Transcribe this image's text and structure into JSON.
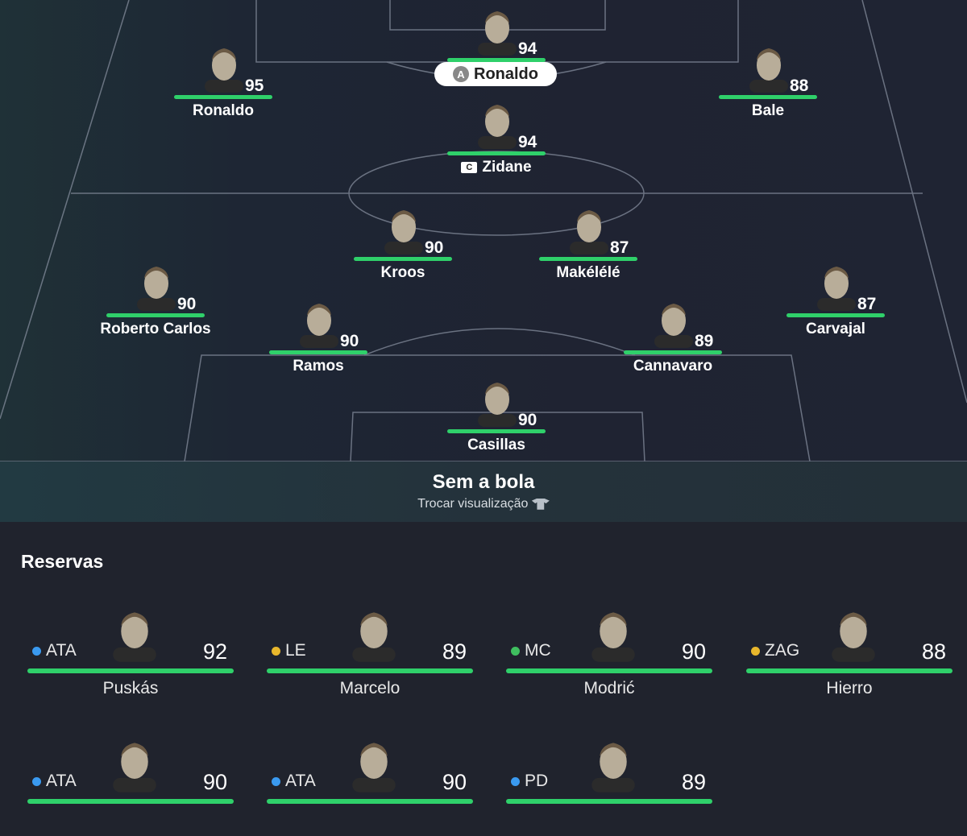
{
  "formation": [
    {
      "name": "Ronaldo",
      "rating": "94",
      "badge": "A",
      "highlight": true
    },
    {
      "name": "Ronaldo",
      "rating": "95"
    },
    {
      "name": "Bale",
      "rating": "88"
    },
    {
      "name": "Zidane",
      "rating": "94",
      "badge": "C"
    },
    {
      "name": "Kroos",
      "rating": "90"
    },
    {
      "name": "Makélélé",
      "rating": "87"
    },
    {
      "name": "Roberto Carlos",
      "rating": "90"
    },
    {
      "name": "Carvajal",
      "rating": "87"
    },
    {
      "name": "Ramos",
      "rating": "90"
    },
    {
      "name": "Cannavaro",
      "rating": "89"
    },
    {
      "name": "Casillas",
      "rating": "90"
    }
  ],
  "banner": {
    "title": "Sem a bola",
    "subtitle": "Trocar visualização",
    "icon": "shirt-swap-icon"
  },
  "reserves": {
    "title": "Reservas",
    "players": [
      {
        "position": "ATA",
        "rating": "92",
        "name": "Puskás",
        "dot_color": "#3a9af0"
      },
      {
        "position": "LE",
        "rating": "89",
        "name": "Marcelo",
        "dot_color": "#e8b72c"
      },
      {
        "position": "MC",
        "rating": "90",
        "name": "Modrić",
        "dot_color": "#3fbf5f"
      },
      {
        "position": "ZAG",
        "rating": "88",
        "name": "Hierro",
        "dot_color": "#e8b72c"
      },
      {
        "position": "ATA",
        "rating": "90",
        "name": "",
        "dot_color": "#3a9af0"
      },
      {
        "position": "ATA",
        "rating": "90",
        "name": "",
        "dot_color": "#3a9af0"
      },
      {
        "position": "PD",
        "rating": "89",
        "name": "",
        "dot_color": "#3a9af0"
      }
    ]
  },
  "colors": {
    "bar": "#2fd06a",
    "pitch": "#1f2433"
  }
}
